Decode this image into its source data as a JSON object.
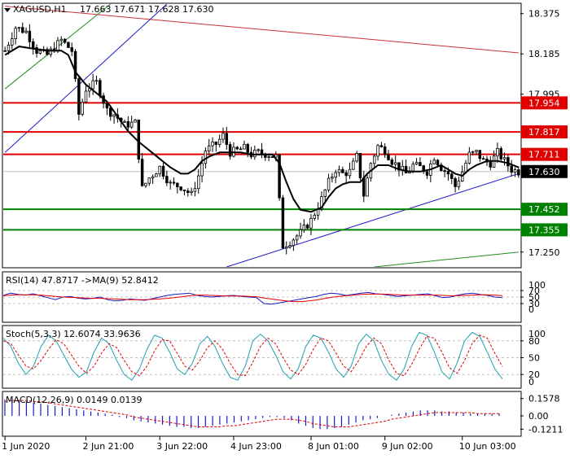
{
  "header": {
    "symbol": "XAGUSD,H1",
    "ohlc": "17.663 17.671 17.628 17.630"
  },
  "colors": {
    "bull": "#000000",
    "bear": "#000000",
    "ma": "#000000",
    "resistance": "#e00000",
    "support": "#008000",
    "trend_blue": "#1a1ac8",
    "trend_red": "#c83232",
    "trend_green": "#228b22",
    "rsi_line": "#1a1ac8",
    "rsi_ma": "#e00000",
    "stoch_main": "#20a0b0",
    "stoch_signal": "#e00000",
    "macd_hist": "#1a1ac8",
    "macd_signal": "#e00000",
    "grid": "#c0c0c0"
  },
  "chart_data": [
    {
      "type": "candlestick",
      "title": "XAGUSD,H1",
      "ylim": [
        17.18,
        18.42
      ],
      "price_ticks": [
        "18.375",
        "18.185",
        "17.995",
        "17.250"
      ],
      "current_price": "17.630",
      "current_price_value": 17.63,
      "horizontal_levels": [
        {
          "label": "17.954",
          "value": 17.954,
          "kind": "resistance"
        },
        {
          "label": "17.817",
          "value": 17.817,
          "kind": "resistance"
        },
        {
          "label": "17.711",
          "value": 17.711,
          "kind": "resistance"
        },
        {
          "label": "17.452",
          "value": 17.452,
          "kind": "support"
        },
        {
          "label": "17.355",
          "value": 17.355,
          "kind": "support"
        }
      ],
      "trendlines": [
        {
          "name": "channel-top-red",
          "from": [
            0,
            18.41
          ],
          "to": [
            146,
            18.19
          ],
          "color": "trend_red"
        },
        {
          "name": "uptrend-blue-left",
          "from": [
            0,
            17.72
          ],
          "to": [
            46,
            18.42
          ],
          "color": "trend_blue"
        },
        {
          "name": "uptrend-green-left",
          "from": [
            0,
            18.02
          ],
          "to": [
            30,
            18.42
          ],
          "color": "trend_green"
        },
        {
          "name": "uptrend-blue-bottom",
          "from": [
            63,
            17.18
          ],
          "to": [
            146,
            17.62
          ],
          "color": "trend_blue"
        },
        {
          "name": "uptrend-green-bottom",
          "from": [
            105,
            17.18
          ],
          "to": [
            146,
            17.25
          ],
          "color": "trend_green"
        }
      ],
      "close_path": [
        [
          0,
          18.2
        ],
        [
          3,
          18.31
        ],
        [
          6,
          18.29
        ],
        [
          9,
          18.2
        ],
        [
          12,
          18.18
        ],
        [
          16,
          18.25
        ],
        [
          19,
          18.2
        ],
        [
          21,
          17.9
        ],
        [
          23,
          18.02
        ],
        [
          26,
          18.05
        ],
        [
          29,
          17.92
        ],
        [
          31,
          17.9
        ],
        [
          34,
          17.85
        ],
        [
          37,
          17.86
        ],
        [
          39,
          17.55
        ],
        [
          41,
          17.6
        ],
        [
          44,
          17.65
        ],
        [
          47,
          17.57
        ],
        [
          50,
          17.56
        ],
        [
          53,
          17.52
        ],
        [
          55,
          17.61
        ],
        [
          57,
          17.73
        ],
        [
          60,
          17.76
        ],
        [
          62,
          17.8
        ],
        [
          64,
          17.72
        ],
        [
          66,
          17.73
        ],
        [
          68,
          17.74
        ],
        [
          70,
          17.71
        ],
        [
          72,
          17.72
        ],
        [
          75,
          17.71
        ],
        [
          77,
          17.7
        ],
        [
          79,
          17.28
        ],
        [
          81,
          17.3
        ],
        [
          84,
          17.34
        ],
        [
          87,
          17.4
        ],
        [
          90,
          17.5
        ],
        [
          92,
          17.58
        ],
        [
          94,
          17.64
        ],
        [
          96,
          17.62
        ],
        [
          98,
          17.63
        ],
        [
          100,
          17.7
        ],
        [
          102,
          17.52
        ],
        [
          104,
          17.67
        ],
        [
          106,
          17.75
        ],
        [
          108,
          17.73
        ],
        [
          110,
          17.68
        ],
        [
          112,
          17.65
        ],
        [
          114,
          17.62
        ],
        [
          116,
          17.66
        ],
        [
          118,
          17.65
        ],
        [
          120,
          17.63
        ],
        [
          122,
          17.7
        ],
        [
          124,
          17.65
        ],
        [
          126,
          17.62
        ],
        [
          128,
          17.56
        ],
        [
          130,
          17.63
        ],
        [
          132,
          17.71
        ],
        [
          134,
          17.72
        ],
        [
          136,
          17.68
        ],
        [
          138,
          17.67
        ],
        [
          140,
          17.72
        ],
        [
          142,
          17.68
        ],
        [
          144,
          17.64
        ],
        [
          146,
          17.63
        ]
      ],
      "ma_path": [
        [
          0,
          18.18
        ],
        [
          4,
          18.22
        ],
        [
          8,
          18.21
        ],
        [
          12,
          18.2
        ],
        [
          16,
          18.2
        ],
        [
          18,
          18.18
        ],
        [
          20,
          18.1
        ],
        [
          23,
          18.04
        ],
        [
          26,
          18.0
        ],
        [
          29,
          17.96
        ],
        [
          32,
          17.89
        ],
        [
          35,
          17.82
        ],
        [
          38,
          17.77
        ],
        [
          41,
          17.73
        ],
        [
          44,
          17.69
        ],
        [
          47,
          17.65
        ],
        [
          50,
          17.62
        ],
        [
          52,
          17.62
        ],
        [
          54,
          17.64
        ],
        [
          56,
          17.68
        ],
        [
          58,
          17.7
        ],
        [
          61,
          17.72
        ],
        [
          64,
          17.72
        ],
        [
          67,
          17.72
        ],
        [
          70,
          17.71
        ],
        [
          73,
          17.71
        ],
        [
          76,
          17.71
        ],
        [
          78,
          17.67
        ],
        [
          80,
          17.58
        ],
        [
          82,
          17.5
        ],
        [
          84,
          17.45
        ],
        [
          87,
          17.44
        ],
        [
          90,
          17.46
        ],
        [
          92,
          17.51
        ],
        [
          94,
          17.55
        ],
        [
          96,
          17.57
        ],
        [
          98,
          17.58
        ],
        [
          101,
          17.58
        ],
        [
          103,
          17.62
        ],
        [
          106,
          17.66
        ],
        [
          109,
          17.66
        ],
        [
          112,
          17.64
        ],
        [
          115,
          17.63
        ],
        [
          118,
          17.63
        ],
        [
          121,
          17.64
        ],
        [
          124,
          17.66
        ],
        [
          126,
          17.64
        ],
        [
          128,
          17.62
        ],
        [
          130,
          17.61
        ],
        [
          132,
          17.64
        ],
        [
          134,
          17.66
        ],
        [
          137,
          17.68
        ],
        [
          140,
          17.68
        ],
        [
          143,
          17.67
        ],
        [
          146,
          17.65
        ]
      ],
      "bars": 147
    },
    {
      "type": "line",
      "title": "RSI(14) 47.8717 ->MA(9) 52.8412",
      "ylim": [
        0,
        100
      ],
      "ticks": [
        "70",
        "50",
        "30"
      ],
      "extra_ticks": [
        "100",
        "0"
      ],
      "levels": [
        70,
        50,
        30
      ],
      "series": [
        {
          "name": "RSI(14)",
          "color": "rsi_line",
          "values": [
            55,
            62,
            58,
            56,
            60,
            54,
            48,
            42,
            50,
            52,
            47,
            44,
            46,
            50,
            42,
            38,
            40,
            44,
            42,
            40,
            45,
            50,
            55,
            58,
            60,
            62,
            55,
            52,
            50,
            52,
            54,
            55,
            52,
            50,
            48,
            30,
            28,
            32,
            36,
            40,
            44,
            48,
            52,
            58,
            62,
            60,
            55,
            58,
            62,
            64,
            60,
            58,
            55,
            52,
            54,
            56,
            58,
            60,
            54,
            48,
            50,
            56,
            60,
            62,
            58,
            55,
            50,
            48
          ]
        },
        {
          "name": "MA(9)",
          "color": "rsi_ma",
          "values": [
            54,
            56,
            57,
            57,
            57,
            56,
            54,
            52,
            50,
            49,
            48,
            47,
            46,
            46,
            45,
            44,
            43,
            42,
            42,
            42,
            43,
            44,
            46,
            48,
            51,
            54,
            56,
            56,
            55,
            54,
            53,
            53,
            53,
            52,
            51,
            47,
            44,
            41,
            38,
            36,
            36,
            38,
            41,
            45,
            49,
            52,
            54,
            56,
            58,
            59,
            59,
            59,
            58,
            57,
            56,
            56,
            56,
            56,
            56,
            55,
            54,
            54,
            55,
            56,
            57,
            57,
            56,
            54
          ]
        }
      ]
    },
    {
      "type": "line",
      "title": "Stoch(5,3,3) 12.6074 33.9636",
      "ylim": [
        0,
        100
      ],
      "ticks": [
        "80",
        "50",
        "20"
      ],
      "extra_ticks": [
        "100",
        "0"
      ],
      "levels": [
        80,
        50,
        20
      ],
      "series": [
        {
          "name": "main",
          "color": "stoch_main",
          "values": [
            85,
            70,
            40,
            20,
            35,
            70,
            90,
            80,
            55,
            30,
            15,
            25,
            60,
            85,
            75,
            45,
            20,
            10,
            30,
            65,
            90,
            85,
            60,
            30,
            20,
            40,
            75,
            88,
            70,
            40,
            15,
            10,
            35,
            80,
            92,
            80,
            55,
            25,
            12,
            30,
            70,
            90,
            85,
            60,
            30,
            15,
            35,
            75,
            92,
            80,
            45,
            20,
            10,
            30,
            70,
            95,
            90,
            60,
            25,
            12,
            40,
            80,
            95,
            88,
            60,
            30,
            12
          ]
        },
        {
          "name": "signal",
          "color": "stoch_signal",
          "values": [
            80,
            75,
            55,
            35,
            30,
            45,
            65,
            82,
            75,
            55,
            35,
            22,
            35,
            58,
            75,
            68,
            45,
            25,
            18,
            35,
            62,
            82,
            80,
            58,
            35,
            28,
            45,
            68,
            80,
            65,
            40,
            20,
            18,
            42,
            70,
            85,
            75,
            50,
            28,
            20,
            38,
            65,
            85,
            80,
            58,
            35,
            25,
            45,
            70,
            85,
            75,
            45,
            22,
            18,
            38,
            65,
            88,
            85,
            60,
            32,
            22,
            45,
            75,
            90,
            85,
            58,
            34
          ]
        }
      ]
    },
    {
      "type": "bar",
      "title": "MACD(12,26,9) 0.0149 0.0139",
      "ylim": [
        -0.17,
        0.2
      ],
      "ticks": [
        "0.1578",
        "0.00",
        "-0.1211"
      ],
      "levels": [
        0
      ],
      "series": [
        {
          "name": "MACD",
          "color": "macd_hist",
          "values": [
            0.15,
            0.15,
            0.14,
            0.13,
            0.12,
            0.11,
            0.1,
            0.09,
            0.08,
            0.07,
            0.06,
            0.05,
            0.04,
            0.03,
            0.02,
            0.01,
            -0.01,
            -0.02,
            -0.04,
            -0.05,
            -0.06,
            -0.07,
            -0.08,
            -0.09,
            -0.1,
            -0.1,
            -0.11,
            -0.11,
            -0.1,
            -0.09,
            -0.08,
            -0.07,
            -0.06,
            -0.05,
            -0.04,
            -0.03,
            -0.02,
            -0.01,
            -0.01,
            -0.02,
            -0.04,
            -0.07,
            -0.09,
            -0.11,
            -0.12,
            -0.12,
            -0.11,
            -0.1,
            -0.08,
            -0.06,
            -0.04,
            -0.03,
            -0.02,
            0.0,
            0.01,
            0.02,
            0.03,
            0.04,
            0.05,
            0.05,
            0.05,
            0.04,
            0.04,
            0.03,
            0.03,
            0.02,
            0.02,
            0.02,
            0.02,
            0.02
          ]
        },
        {
          "name": "Signal",
          "color": "macd_signal",
          "values": [
            0.13,
            0.14,
            0.14,
            0.14,
            0.13,
            0.13,
            0.12,
            0.11,
            0.1,
            0.09,
            0.08,
            0.07,
            0.06,
            0.05,
            0.04,
            0.03,
            0.02,
            0.01,
            -0.01,
            -0.02,
            -0.03,
            -0.04,
            -0.05,
            -0.06,
            -0.07,
            -0.08,
            -0.09,
            -0.1,
            -0.1,
            -0.1,
            -0.1,
            -0.09,
            -0.09,
            -0.08,
            -0.07,
            -0.06,
            -0.05,
            -0.04,
            -0.03,
            -0.03,
            -0.03,
            -0.04,
            -0.05,
            -0.07,
            -0.08,
            -0.09,
            -0.1,
            -0.1,
            -0.1,
            -0.09,
            -0.08,
            -0.07,
            -0.06,
            -0.05,
            -0.03,
            -0.02,
            -0.01,
            0.0,
            0.01,
            0.02,
            0.03,
            0.03,
            0.03,
            0.03,
            0.03,
            0.03,
            0.02,
            0.02,
            0.02,
            0.02
          ]
        }
      ]
    }
  ],
  "x_axis": {
    "labels": [
      "1 Jun 2020",
      "2 Jun 21:00",
      "3 Jun 22:00",
      "4 Jun 23:00",
      "8 Jun 01:00",
      "9 Jun 02:00",
      "10 Jun 03:00"
    ],
    "label_bars": [
      0,
      23,
      44,
      65,
      87,
      108,
      130
    ]
  }
}
